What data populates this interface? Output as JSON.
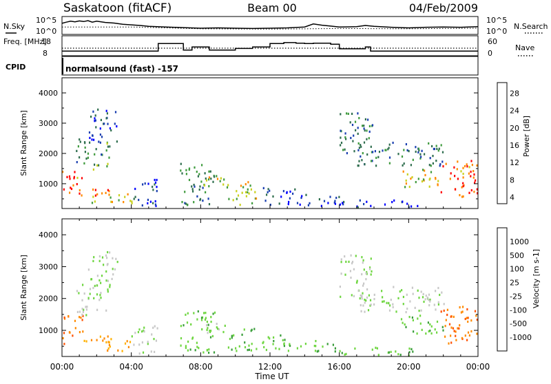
{
  "header": {
    "station": "Saskatoon (fitACF)",
    "beam": "Beam 00",
    "date": "04/Feb/2009"
  },
  "noise_panel": {
    "left_label": "N.Sky",
    "left_ticks": [
      "10^5",
      "10^0"
    ],
    "right_ticks": [
      "10^5",
      "10^0"
    ],
    "right_label": "N.Search",
    "sky_noise_log10": [
      [
        0.0,
        3.2
      ],
      [
        0.25,
        3.6
      ],
      [
        0.5,
        3.9
      ],
      [
        0.75,
        3.7
      ],
      [
        1.0,
        4.0
      ],
      [
        1.25,
        3.8
      ],
      [
        1.5,
        4.1
      ],
      [
        1.75,
        3.6
      ],
      [
        2.0,
        3.9
      ],
      [
        2.5,
        3.5
      ],
      [
        3.0,
        3.3
      ],
      [
        3.5,
        2.9
      ],
      [
        4.0,
        2.7
      ],
      [
        4.5,
        2.5
      ],
      [
        5.0,
        2.2
      ],
      [
        6.0,
        2.0
      ],
      [
        7.0,
        1.8
      ],
      [
        8.0,
        1.6
      ],
      [
        9.0,
        1.7
      ],
      [
        10.0,
        1.6
      ],
      [
        11.0,
        1.5
      ],
      [
        12.0,
        1.6
      ],
      [
        13.0,
        1.7
      ],
      [
        14.0,
        2.0
      ],
      [
        14.5,
        3.0
      ],
      [
        15.0,
        2.6
      ],
      [
        15.5,
        2.3
      ],
      [
        16.0,
        2.0
      ],
      [
        17.0,
        2.1
      ],
      [
        17.5,
        2.5
      ],
      [
        18.0,
        2.2
      ],
      [
        19.0,
        1.9
      ],
      [
        20.0,
        1.7
      ],
      [
        21.0,
        1.9
      ],
      [
        22.0,
        2.0
      ],
      [
        23.0,
        1.9
      ],
      [
        24.0,
        2.1
      ]
    ],
    "search_noise_log10": [
      [
        0.0,
        2.0
      ],
      [
        4.0,
        2.0
      ],
      [
        8.0,
        1.4
      ],
      [
        12.0,
        1.3
      ],
      [
        16.0,
        1.5
      ],
      [
        20.0,
        1.4
      ],
      [
        24.0,
        1.6
      ]
    ]
  },
  "freq_panel": {
    "left_label": "Freq. [MHz]",
    "left_ticks": [
      "18",
      "8"
    ],
    "right_ticks": [
      "60",
      "0"
    ],
    "right_label": "Nave",
    "cpid_label": "CPID",
    "cpid_text": "normalsound (fast) -157",
    "freq_steps_mhz": [
      [
        0.0,
        10.6
      ],
      [
        5.55,
        10.6
      ],
      [
        5.55,
        16.8
      ],
      [
        7.0,
        16.8
      ],
      [
        7.0,
        11.5
      ],
      [
        7.5,
        11.5
      ],
      [
        7.5,
        14.0
      ],
      [
        8.5,
        14.0
      ],
      [
        8.5,
        11.5
      ],
      [
        10.0,
        11.5
      ],
      [
        10.0,
        12.8
      ],
      [
        11.0,
        12.8
      ],
      [
        11.0,
        14.0
      ],
      [
        12.0,
        14.0
      ],
      [
        12.0,
        16.8
      ],
      [
        12.8,
        16.8
      ],
      [
        12.8,
        17.5
      ],
      [
        13.5,
        17.5
      ],
      [
        13.5,
        17.0
      ],
      [
        14.0,
        17.0
      ],
      [
        14.0,
        16.8
      ],
      [
        14.5,
        16.8
      ],
      [
        14.5,
        17.0
      ],
      [
        15.5,
        17.0
      ],
      [
        15.5,
        16.2
      ],
      [
        16.0,
        16.2
      ],
      [
        16.0,
        12.5
      ],
      [
        17.5,
        12.5
      ],
      [
        17.5,
        14.0
      ],
      [
        17.8,
        14.0
      ],
      [
        17.8,
        10.6
      ],
      [
        24.0,
        10.6
      ]
    ],
    "nave_dotted_level": 30
  },
  "power_panel": {
    "ylabel": "Slant Range [km]",
    "y_ticks": [
      "4000",
      "3000",
      "2000",
      "1000"
    ],
    "colorbar_label": "Power [dB]",
    "colorbar_ticks": [
      "28",
      "24",
      "20",
      "16",
      "12",
      "8",
      "4"
    ],
    "colors": [
      "#0000ff",
      "#1a3fb0",
      "#2f6e4e",
      "#3f9b3e",
      "#c9d11f",
      "#ff8a00",
      "#ff0000"
    ]
  },
  "velocity_panel": {
    "ylabel": "Slant Range [km]",
    "y_ticks": [
      "4000",
      "3000",
      "2000",
      "1000"
    ],
    "colorbar_label": "Velocity [m s-1]",
    "colorbar_ticks": [
      "1000",
      "500",
      "100",
      "25",
      "-25",
      "-100",
      "-500",
      "-1000"
    ],
    "colors": [
      "#1e3fb0",
      "#2a6e4f",
      "#3a9d3b",
      "#6fd641",
      "#c8c8c8",
      "#ffb000",
      "#ff8a00",
      "#ff5000",
      "#ff0000"
    ]
  },
  "x_axis": {
    "ticks": [
      "00:00",
      "04:00",
      "08:00",
      "12:00",
      "16:00",
      "20:00",
      "00:00"
    ],
    "label": "Time UT"
  },
  "chart_data": {
    "type": "heatmap",
    "title": "Saskatoon (fitACF) Beam 00 04/Feb/2009",
    "xlabel": "Time UT",
    "ylabel": "Slant Range [km]",
    "xlim": [
      0,
      24
    ],
    "ylim": [
      180,
      4500
    ],
    "grid": false,
    "series": [
      {
        "name": "Power [dB]",
        "colorbar": [
          4,
          8,
          12,
          16,
          20,
          24,
          28
        ]
      },
      {
        "name": "Velocity",
        "colorbar": [
          -1000,
          -500,
          -100,
          -25,
          25,
          100,
          500,
          1000
        ]
      }
    ],
    "echo_regions": [
      {
        "t": [
          0.0,
          1.2
        ],
        "r": [
          600,
          1500
        ],
        "power_db": 26,
        "velocity": -500
      },
      {
        "t": [
          0.8,
          2.8
        ],
        "r": [
          1500,
          2500
        ],
        "power_db": 14,
        "velocity": 25
      },
      {
        "t": [
          1.5,
          3.2
        ],
        "r": [
          2400,
          3500
        ],
        "power_db": 8,
        "velocity": 25
      },
      {
        "t": [
          1.2,
          2.8
        ],
        "r": [
          400,
          900
        ],
        "power_db": 22,
        "velocity": -100
      },
      {
        "t": [
          2.5,
          4.2
        ],
        "r": [
          350,
          700
        ],
        "power_db": 20,
        "velocity": -100
      },
      {
        "t": [
          4.0,
          5.5
        ],
        "r": [
          300,
          1200
        ],
        "power_db": 8,
        "velocity": 25
      },
      {
        "t": [
          6.8,
          8.8
        ],
        "r": [
          300,
          1700
        ],
        "power_db": 14,
        "velocity": 100
      },
      {
        "t": [
          8.0,
          9.5
        ],
        "r": [
          900,
          1300
        ],
        "power_db": 20,
        "velocity": 25
      },
      {
        "t": [
          9.5,
          11.2
        ],
        "r": [
          300,
          1100
        ],
        "power_db": 20,
        "velocity": 100
      },
      {
        "t": [
          11.5,
          13.8
        ],
        "r": [
          300,
          900
        ],
        "power_db": 8,
        "velocity": 100
      },
      {
        "t": [
          14.0,
          16.0
        ],
        "r": [
          300,
          700
        ],
        "power_db": 8,
        "velocity": 100
      },
      {
        "t": [
          16.0,
          18.0
        ],
        "r": [
          2000,
          3400
        ],
        "power_db": 12,
        "velocity": 25
      },
      {
        "t": [
          17.0,
          22.0
        ],
        "r": [
          1600,
          2400
        ],
        "power_db": 12,
        "velocity": 25
      },
      {
        "t": [
          19.5,
          22.0
        ],
        "r": [
          900,
          1500
        ],
        "power_db": 20,
        "velocity": 100
      },
      {
        "t": [
          21.8,
          24.0
        ],
        "r": [
          600,
          1800
        ],
        "power_db": 26,
        "velocity": -500
      },
      {
        "t": [
          16.0,
          20.5
        ],
        "r": [
          250,
          500
        ],
        "power_db": 6,
        "velocity": 100
      }
    ]
  }
}
